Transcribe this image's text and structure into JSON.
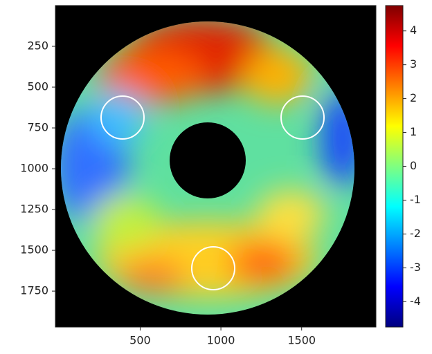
{
  "chart_data": {
    "type": "image",
    "colormap": "jet",
    "xlim": [
      -25,
      1960
    ],
    "xticks": [
      500,
      1000,
      1500
    ],
    "ylim": [
      1970,
      0
    ],
    "yticks": [
      250,
      500,
      750,
      1000,
      1250,
      1500,
      1750
    ],
    "clim": [
      -4.75,
      4.75
    ],
    "cticks": [
      -4,
      -3,
      -2,
      -1,
      0,
      1,
      2,
      3,
      4
    ]
  }
}
